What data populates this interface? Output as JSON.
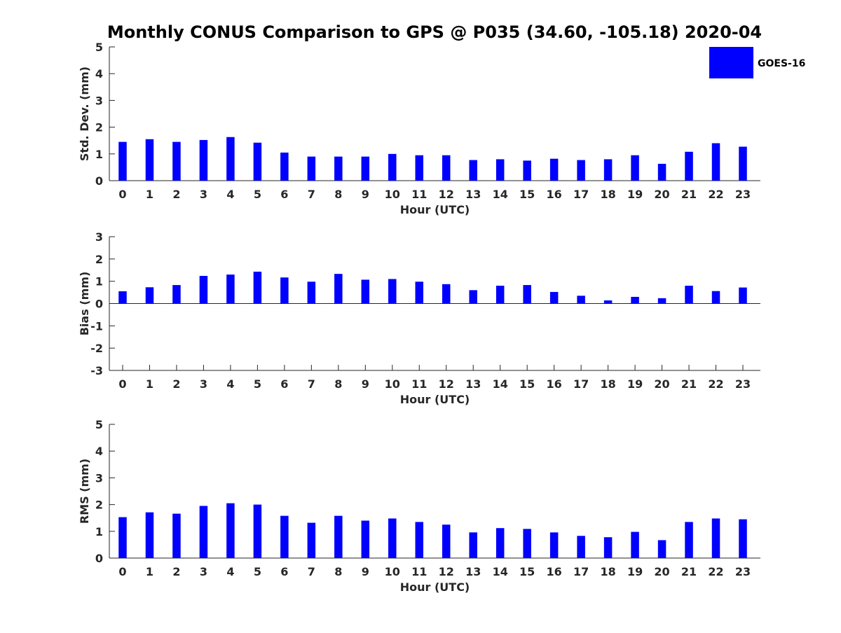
{
  "title": "Monthly CONUS Comparison to GPS @ P035 (34.60, -105.18) 2020-04",
  "legend": {
    "label": "GOES-16",
    "color": "#0000ff"
  },
  "chart_data": [
    {
      "type": "bar",
      "xlabel": "Hour (UTC)",
      "ylabel": "Std. Dev. (mm)",
      "ylim": [
        0,
        5
      ],
      "yticks": [
        0,
        1,
        2,
        3,
        4,
        5
      ],
      "categories": [
        "0",
        "1",
        "2",
        "3",
        "4",
        "5",
        "6",
        "7",
        "8",
        "9",
        "10",
        "11",
        "12",
        "13",
        "14",
        "15",
        "16",
        "17",
        "18",
        "19",
        "20",
        "21",
        "22",
        "23"
      ],
      "series": [
        {
          "name": "GOES-16",
          "color": "#0000ff",
          "values": [
            1.45,
            1.55,
            1.45,
            1.52,
            1.63,
            1.42,
            1.05,
            0.9,
            0.9,
            0.9,
            1.0,
            0.95,
            0.95,
            0.77,
            0.8,
            0.75,
            0.82,
            0.77,
            0.8,
            0.95,
            0.63,
            1.08,
            1.4,
            1.27
          ]
        }
      ],
      "grid": false,
      "legend": "top-right"
    },
    {
      "type": "bar",
      "xlabel": "Hour (UTC)",
      "ylabel": "Bias (mm)",
      "ylim": [
        -3,
        3
      ],
      "yticks": [
        -3,
        -2,
        -1,
        0,
        1,
        2,
        3
      ],
      "categories": [
        "0",
        "1",
        "2",
        "3",
        "4",
        "5",
        "6",
        "7",
        "8",
        "9",
        "10",
        "11",
        "12",
        "13",
        "14",
        "15",
        "16",
        "17",
        "18",
        "19",
        "20",
        "21",
        "22",
        "23"
      ],
      "series": [
        {
          "name": "GOES-16",
          "color": "#0000ff",
          "values": [
            0.55,
            0.73,
            0.83,
            1.24,
            1.3,
            1.43,
            1.17,
            0.98,
            1.33,
            1.07,
            1.1,
            0.98,
            0.87,
            0.6,
            0.8,
            0.83,
            0.52,
            0.35,
            0.14,
            0.3,
            0.24,
            0.8,
            0.56,
            0.72
          ]
        }
      ],
      "grid": false
    },
    {
      "type": "bar",
      "xlabel": "Hour (UTC)",
      "ylabel": "RMS (mm)",
      "ylim": [
        0,
        5
      ],
      "yticks": [
        0,
        1,
        2,
        3,
        4,
        5
      ],
      "categories": [
        "0",
        "1",
        "2",
        "3",
        "4",
        "5",
        "6",
        "7",
        "8",
        "9",
        "10",
        "11",
        "12",
        "13",
        "14",
        "15",
        "16",
        "17",
        "18",
        "19",
        "20",
        "21",
        "22",
        "23"
      ],
      "series": [
        {
          "name": "GOES-16",
          "color": "#0000ff",
          "values": [
            1.53,
            1.71,
            1.66,
            1.95,
            2.05,
            2.0,
            1.58,
            1.32,
            1.58,
            1.4,
            1.48,
            1.35,
            1.25,
            0.96,
            1.12,
            1.09,
            0.96,
            0.83,
            0.78,
            0.98,
            0.67,
            1.35,
            1.48,
            1.45
          ]
        }
      ],
      "grid": false
    }
  ]
}
